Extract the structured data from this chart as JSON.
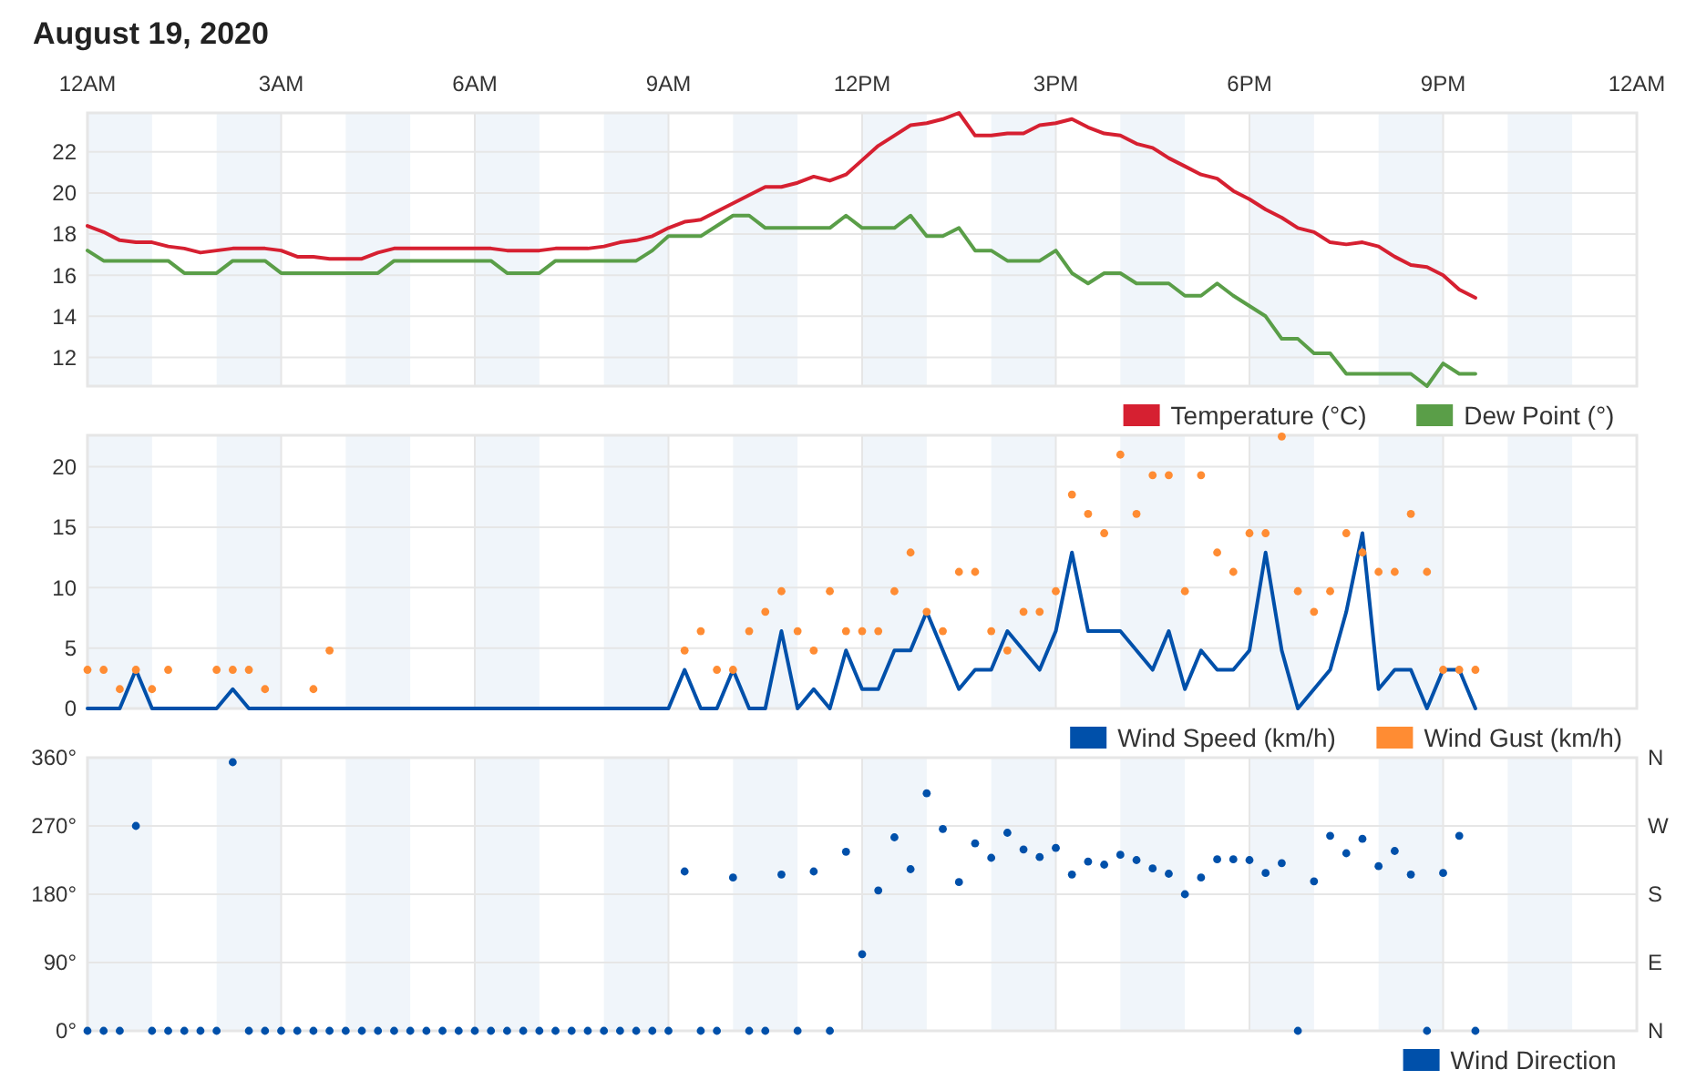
{
  "chart_data": [
    {
      "type": "line",
      "title": "August 19, 2020",
      "xlim": [
        "2020-08-19T00:00",
        "2020-08-20T00:00"
      ],
      "ylim": [
        10.6,
        23.9
      ],
      "x": [
        "2020-08-19T00:00",
        "2020-08-19T00:15",
        "2020-08-19T00:30",
        "2020-08-19T00:45",
        "2020-08-19T01:00",
        "2020-08-19T01:15",
        "2020-08-19T01:30",
        "2020-08-19T01:45",
        "2020-08-19T02:00",
        "2020-08-19T02:15",
        "2020-08-19T02:30",
        "2020-08-19T02:45",
        "2020-08-19T03:00",
        "2020-08-19T03:15",
        "2020-08-19T03:30",
        "2020-08-19T03:45",
        "2020-08-19T04:00",
        "2020-08-19T04:15",
        "2020-08-19T04:30",
        "2020-08-19T04:45",
        "2020-08-19T05:00",
        "2020-08-19T05:15",
        "2020-08-19T05:30",
        "2020-08-19T05:45",
        "2020-08-19T06:00",
        "2020-08-19T06:15",
        "2020-08-19T06:30",
        "2020-08-19T06:45",
        "2020-08-19T07:00",
        "2020-08-19T07:15",
        "2020-08-19T07:30",
        "2020-08-19T07:45",
        "2020-08-19T08:00",
        "2020-08-19T08:15",
        "2020-08-19T08:30",
        "2020-08-19T08:45",
        "2020-08-19T09:00",
        "2020-08-19T09:15",
        "2020-08-19T09:30",
        "2020-08-19T09:45",
        "2020-08-19T10:00",
        "2020-08-19T10:15",
        "2020-08-19T10:30",
        "2020-08-19T10:45",
        "2020-08-19T11:00",
        "2020-08-19T11:15",
        "2020-08-19T11:30",
        "2020-08-19T11:45",
        "2020-08-19T12:00",
        "2020-08-19T12:15",
        "2020-08-19T12:30",
        "2020-08-19T12:45",
        "2020-08-19T13:00",
        "2020-08-19T13:15",
        "2020-08-19T13:30",
        "2020-08-19T13:45",
        "2020-08-19T14:00",
        "2020-08-19T14:15",
        "2020-08-19T14:30",
        "2020-08-19T14:45",
        "2020-08-19T15:00",
        "2020-08-19T15:15",
        "2020-08-19T15:30",
        "2020-08-19T15:45",
        "2020-08-19T16:00",
        "2020-08-19T16:15",
        "2020-08-19T16:30",
        "2020-08-19T16:45",
        "2020-08-19T17:00",
        "2020-08-19T17:15",
        "2020-08-19T17:30",
        "2020-08-19T17:45",
        "2020-08-19T18:00",
        "2020-08-19T18:15",
        "2020-08-19T18:30",
        "2020-08-19T18:45",
        "2020-08-19T19:00",
        "2020-08-19T19:15",
        "2020-08-19T19:30",
        "2020-08-19T19:45",
        "2020-08-19T20:00",
        "2020-08-19T20:15",
        "2020-08-19T20:30",
        "2020-08-19T20:45",
        "2020-08-19T21:00",
        "2020-08-19T21:15",
        "2020-08-19T21:30"
      ],
      "xticks": [
        {
          "value": "2020-08-19T00:00",
          "label": "12AM"
        },
        {
          "value": "2020-08-19T03:00",
          "label": "3AM"
        },
        {
          "value": "2020-08-19T06:00",
          "label": "6AM"
        },
        {
          "value": "2020-08-19T09:00",
          "label": "9AM"
        },
        {
          "value": "2020-08-19T12:00",
          "label": "12PM"
        },
        {
          "value": "2020-08-19T15:00",
          "label": "3PM"
        },
        {
          "value": "2020-08-19T18:00",
          "label": "6PM"
        },
        {
          "value": "2020-08-19T21:00",
          "label": "9PM"
        },
        {
          "value": "2020-08-20T00:00",
          "label": "12AM"
        }
      ],
      "yticks": [
        12,
        14,
        16,
        18,
        20,
        22
      ],
      "grid": true,
      "legend": "bottom right",
      "bands": [
        {
          "axis": "x",
          "from": "2020-08-19T00:00",
          "to": "2020-08-19T01:00",
          "color": "#f0f5fa"
        },
        {
          "axis": "x",
          "from": "2020-08-19T02:00",
          "to": "2020-08-19T03:00",
          "color": "#f0f5fa"
        },
        {
          "axis": "x",
          "from": "2020-08-19T04:00",
          "to": "2020-08-19T05:00",
          "color": "#f0f5fa"
        },
        {
          "axis": "x",
          "from": "2020-08-19T06:00",
          "to": "2020-08-19T07:00",
          "color": "#f0f5fa"
        },
        {
          "axis": "x",
          "from": "2020-08-19T08:00",
          "to": "2020-08-19T09:00",
          "color": "#f0f5fa"
        },
        {
          "axis": "x",
          "from": "2020-08-19T10:00",
          "to": "2020-08-19T11:00",
          "color": "#f0f5fa"
        },
        {
          "axis": "x",
          "from": "2020-08-19T12:00",
          "to": "2020-08-19T13:00",
          "color": "#f0f5fa"
        },
        {
          "axis": "x",
          "from": "2020-08-19T14:00",
          "to": "2020-08-19T15:00",
          "color": "#f0f5fa"
        },
        {
          "axis": "x",
          "from": "2020-08-19T16:00",
          "to": "2020-08-19T17:00",
          "color": "#f0f5fa"
        },
        {
          "axis": "x",
          "from": "2020-08-19T18:00",
          "to": "2020-08-19T19:00",
          "color": "#f0f5fa"
        },
        {
          "axis": "x",
          "from": "2020-08-19T20:00",
          "to": "2020-08-19T21:00",
          "color": "#f0f5fa"
        },
        {
          "axis": "x",
          "from": "2020-08-19T22:00",
          "to": "2020-08-19T23:00",
          "color": "#f0f5fa"
        }
      ],
      "series": [
        {
          "name": "Temperature (°C)",
          "color": "#d62031",
          "values": [
            18.4,
            18.1,
            17.7,
            17.6,
            17.6,
            17.4,
            17.3,
            17.1,
            17.2,
            17.3,
            17.3,
            17.3,
            17.2,
            16.9,
            16.9,
            16.8,
            16.8,
            16.8,
            17.1,
            17.3,
            17.3,
            17.3,
            17.3,
            17.3,
            17.3,
            17.3,
            17.2,
            17.2,
            17.2,
            17.3,
            17.3,
            17.3,
            17.4,
            17.6,
            17.7,
            17.9,
            18.3,
            18.6,
            18.7,
            19.1,
            19.5,
            19.9,
            20.3,
            20.3,
            20.5,
            20.8,
            20.6,
            20.9,
            21.6,
            22.3,
            22.8,
            23.3,
            23.4,
            23.6,
            23.9,
            22.8,
            22.8,
            22.9,
            22.9,
            23.3,
            23.4,
            23.6,
            23.2,
            22.9,
            22.8,
            22.4,
            22.2,
            21.7,
            21.3,
            20.9,
            20.7,
            20.1,
            19.7,
            19.2,
            18.8,
            18.3,
            18.1,
            17.6,
            17.5,
            17.6,
            17.4,
            16.9,
            16.5,
            16.4,
            16.0,
            15.3,
            14.9
          ]
        },
        {
          "name": "Dew Point (°)",
          "color": "#5a9e48",
          "values": [
            17.2,
            16.7,
            16.7,
            16.7,
            16.7,
            16.7,
            16.1,
            16.1,
            16.1,
            16.7,
            16.7,
            16.7,
            16.1,
            16.1,
            16.1,
            16.1,
            16.1,
            16.1,
            16.1,
            16.7,
            16.7,
            16.7,
            16.7,
            16.7,
            16.7,
            16.7,
            16.1,
            16.1,
            16.1,
            16.7,
            16.7,
            16.7,
            16.7,
            16.7,
            16.7,
            17.2,
            17.9,
            17.9,
            17.9,
            18.4,
            18.9,
            18.9,
            18.3,
            18.3,
            18.3,
            18.3,
            18.3,
            18.9,
            18.3,
            18.3,
            18.3,
            18.9,
            17.9,
            17.9,
            18.3,
            17.2,
            17.2,
            16.7,
            16.7,
            16.7,
            17.2,
            16.1,
            15.6,
            16.1,
            16.1,
            15.6,
            15.6,
            15.6,
            15.0,
            15.0,
            15.6,
            15.0,
            14.5,
            14.0,
            12.9,
            12.9,
            12.2,
            12.2,
            11.2,
            11.2,
            11.2,
            11.2,
            11.2,
            10.6,
            11.7,
            11.2,
            11.2
          ]
        }
      ]
    },
    {
      "type": "line",
      "xlim": [
        "2020-08-19T00:00",
        "2020-08-20T00:00"
      ],
      "ylim": [
        0,
        22.6
      ],
      "tick_labels": "y",
      "x": [
        "2020-08-19T00:00",
        "2020-08-19T00:15",
        "2020-08-19T00:30",
        "2020-08-19T00:45",
        "2020-08-19T01:00",
        "2020-08-19T01:15",
        "2020-08-19T01:30",
        "2020-08-19T01:45",
        "2020-08-19T02:00",
        "2020-08-19T02:15",
        "2020-08-19T02:30",
        "2020-08-19T02:45",
        "2020-08-19T03:00",
        "2020-08-19T03:15",
        "2020-08-19T03:30",
        "2020-08-19T03:45",
        "2020-08-19T04:00",
        "2020-08-19T04:15",
        "2020-08-19T04:30",
        "2020-08-19T04:45",
        "2020-08-19T05:00",
        "2020-08-19T05:15",
        "2020-08-19T05:30",
        "2020-08-19T05:45",
        "2020-08-19T06:00",
        "2020-08-19T06:15",
        "2020-08-19T06:30",
        "2020-08-19T06:45",
        "2020-08-19T07:00",
        "2020-08-19T07:15",
        "2020-08-19T07:30",
        "2020-08-19T07:45",
        "2020-08-19T08:00",
        "2020-08-19T08:15",
        "2020-08-19T08:30",
        "2020-08-19T08:45",
        "2020-08-19T09:00",
        "2020-08-19T09:15",
        "2020-08-19T09:30",
        "2020-08-19T09:45",
        "2020-08-19T10:00",
        "2020-08-19T10:15",
        "2020-08-19T10:30",
        "2020-08-19T10:45",
        "2020-08-19T11:00",
        "2020-08-19T11:15",
        "2020-08-19T11:30",
        "2020-08-19T11:45",
        "2020-08-19T12:00",
        "2020-08-19T12:15",
        "2020-08-19T12:30",
        "2020-08-19T12:45",
        "2020-08-19T13:00",
        "2020-08-19T13:15",
        "2020-08-19T13:30",
        "2020-08-19T13:45",
        "2020-08-19T14:00",
        "2020-08-19T14:15",
        "2020-08-19T14:30",
        "2020-08-19T14:45",
        "2020-08-19T15:00",
        "2020-08-19T15:15",
        "2020-08-19T15:30",
        "2020-08-19T15:45",
        "2020-08-19T16:00",
        "2020-08-19T16:15",
        "2020-08-19T16:30",
        "2020-08-19T16:45",
        "2020-08-19T17:00",
        "2020-08-19T17:15",
        "2020-08-19T17:30",
        "2020-08-19T17:45",
        "2020-08-19T18:00",
        "2020-08-19T18:15",
        "2020-08-19T18:30",
        "2020-08-19T18:45",
        "2020-08-19T19:00",
        "2020-08-19T19:15",
        "2020-08-19T19:30",
        "2020-08-19T19:45",
        "2020-08-19T20:00",
        "2020-08-19T20:15",
        "2020-08-19T20:30",
        "2020-08-19T20:45",
        "2020-08-19T21:00",
        "2020-08-19T21:15",
        "2020-08-19T21:30"
      ],
      "xticks": [
        {
          "value": "2020-08-19T00:00",
          "label": null
        },
        {
          "value": "2020-08-19T03:00",
          "label": null
        },
        {
          "value": "2020-08-19T06:00",
          "label": null
        },
        {
          "value": "2020-08-19T09:00",
          "label": null
        },
        {
          "value": "2020-08-19T12:00",
          "label": null
        },
        {
          "value": "2020-08-19T15:00",
          "label": null
        },
        {
          "value": "2020-08-19T18:00",
          "label": null
        },
        {
          "value": "2020-08-19T21:00",
          "label": null
        },
        {
          "value": "2020-08-20T00:00",
          "label": null
        }
      ],
      "yticks": [
        0,
        5,
        10,
        15,
        20
      ],
      "grid": true,
      "legend": "bottom right",
      "bands": [
        {
          "axis": "x",
          "from": "2020-08-19T00:00",
          "to": "2020-08-19T01:00",
          "color": "#f0f5fa"
        },
        {
          "axis": "x",
          "from": "2020-08-19T02:00",
          "to": "2020-08-19T03:00",
          "color": "#f0f5fa"
        },
        {
          "axis": "x",
          "from": "2020-08-19T04:00",
          "to": "2020-08-19T05:00",
          "color": "#f0f5fa"
        },
        {
          "axis": "x",
          "from": "2020-08-19T06:00",
          "to": "2020-08-19T07:00",
          "color": "#f0f5fa"
        },
        {
          "axis": "x",
          "from": "2020-08-19T08:00",
          "to": "2020-08-19T09:00",
          "color": "#f0f5fa"
        },
        {
          "axis": "x",
          "from": "2020-08-19T10:00",
          "to": "2020-08-19T11:00",
          "color": "#f0f5fa"
        },
        {
          "axis": "x",
          "from": "2020-08-19T12:00",
          "to": "2020-08-19T13:00",
          "color": "#f0f5fa"
        },
        {
          "axis": "x",
          "from": "2020-08-19T14:00",
          "to": "2020-08-19T15:00",
          "color": "#f0f5fa"
        },
        {
          "axis": "x",
          "from": "2020-08-19T16:00",
          "to": "2020-08-19T17:00",
          "color": "#f0f5fa"
        },
        {
          "axis": "x",
          "from": "2020-08-19T18:00",
          "to": "2020-08-19T19:00",
          "color": "#f0f5fa"
        },
        {
          "axis": "x",
          "from": "2020-08-19T20:00",
          "to": "2020-08-19T21:00",
          "color": "#f0f5fa"
        },
        {
          "axis": "x",
          "from": "2020-08-19T22:00",
          "to": "2020-08-19T23:00",
          "color": "#f0f5fa"
        }
      ],
      "series": [
        {
          "name": "Wind Speed (km/h)",
          "color": "#0050aa",
          "values": [
            0,
            0,
            0,
            3.2,
            0,
            0,
            0,
            0,
            0,
            1.6,
            0,
            0,
            0,
            0,
            0,
            0,
            0,
            0,
            0,
            0,
            0,
            0,
            0,
            0,
            0,
            0,
            0,
            0,
            0,
            0,
            0,
            0,
            0,
            0,
            0,
            0,
            0,
            3.2,
            0,
            0,
            3.2,
            0,
            0,
            6.4,
            0,
            1.6,
            0,
            4.8,
            1.6,
            1.6,
            4.8,
            4.8,
            8.0,
            4.8,
            1.6,
            3.2,
            3.2,
            6.4,
            4.8,
            3.2,
            6.4,
            12.9,
            6.4,
            6.4,
            6.4,
            4.8,
            3.2,
            6.4,
            1.6,
            4.8,
            3.2,
            3.2,
            4.8,
            12.9,
            4.8,
            0,
            1.6,
            3.2,
            8.0,
            14.5,
            1.6,
            3.2,
            3.2,
            0,
            3.2,
            3.2,
            0
          ]
        },
        {
          "name": "Wind Gust (km/h)",
          "type": "scatter",
          "marker": "circle",
          "color": "#ff8c33",
          "values": [
            3.2,
            3.2,
            1.6,
            3.2,
            1.6,
            3.2,
            null,
            null,
            3.2,
            3.2,
            3.2,
            1.6,
            null,
            null,
            1.6,
            4.8,
            null,
            null,
            null,
            null,
            null,
            null,
            null,
            null,
            null,
            null,
            null,
            null,
            null,
            null,
            null,
            null,
            null,
            null,
            null,
            null,
            null,
            4.8,
            6.4,
            3.2,
            3.2,
            6.4,
            8.0,
            9.7,
            6.4,
            4.8,
            9.7,
            6.4,
            6.4,
            6.4,
            9.7,
            12.9,
            8.0,
            6.4,
            11.3,
            11.3,
            6.4,
            4.8,
            8.0,
            8.0,
            9.7,
            17.7,
            16.1,
            14.5,
            21.0,
            16.1,
            19.3,
            19.3,
            9.7,
            19.3,
            12.9,
            11.3,
            14.5,
            14.5,
            22.5,
            9.7,
            8.0,
            9.7,
            14.5,
            12.9,
            11.3,
            11.3,
            16.1,
            11.3,
            3.2,
            3.2,
            3.2
          ]
        }
      ]
    },
    {
      "type": "scatter",
      "xlim": [
        "2020-08-19T00:00",
        "2020-08-20T00:00"
      ],
      "ylim": [
        0,
        360
      ],
      "tick_labels": "y",
      "x": [
        "2020-08-19T00:00",
        "2020-08-19T00:15",
        "2020-08-19T00:30",
        "2020-08-19T00:45",
        "2020-08-19T01:00",
        "2020-08-19T01:15",
        "2020-08-19T01:30",
        "2020-08-19T01:45",
        "2020-08-19T02:00",
        "2020-08-19T02:15",
        "2020-08-19T02:30",
        "2020-08-19T02:45",
        "2020-08-19T03:00",
        "2020-08-19T03:15",
        "2020-08-19T03:30",
        "2020-08-19T03:45",
        "2020-08-19T04:00",
        "2020-08-19T04:15",
        "2020-08-19T04:30",
        "2020-08-19T04:45",
        "2020-08-19T05:00",
        "2020-08-19T05:15",
        "2020-08-19T05:30",
        "2020-08-19T05:45",
        "2020-08-19T06:00",
        "2020-08-19T06:15",
        "2020-08-19T06:30",
        "2020-08-19T06:45",
        "2020-08-19T07:00",
        "2020-08-19T07:15",
        "2020-08-19T07:30",
        "2020-08-19T07:45",
        "2020-08-19T08:00",
        "2020-08-19T08:15",
        "2020-08-19T08:30",
        "2020-08-19T08:45",
        "2020-08-19T09:00",
        "2020-08-19T09:15",
        "2020-08-19T09:30",
        "2020-08-19T09:45",
        "2020-08-19T10:00",
        "2020-08-19T10:15",
        "2020-08-19T10:30",
        "2020-08-19T10:45",
        "2020-08-19T11:00",
        "2020-08-19T11:15",
        "2020-08-19T11:30",
        "2020-08-19T11:45",
        "2020-08-19T12:00",
        "2020-08-19T12:15",
        "2020-08-19T12:30",
        "2020-08-19T12:45",
        "2020-08-19T13:00",
        "2020-08-19T13:15",
        "2020-08-19T13:30",
        "2020-08-19T13:45",
        "2020-08-19T14:00",
        "2020-08-19T14:15",
        "2020-08-19T14:30",
        "2020-08-19T14:45",
        "2020-08-19T15:00",
        "2020-08-19T15:15",
        "2020-08-19T15:30",
        "2020-08-19T15:45",
        "2020-08-19T16:00",
        "2020-08-19T16:15",
        "2020-08-19T16:30",
        "2020-08-19T16:45",
        "2020-08-19T17:00",
        "2020-08-19T17:15",
        "2020-08-19T17:30",
        "2020-08-19T17:45",
        "2020-08-19T18:00",
        "2020-08-19T18:15",
        "2020-08-19T18:30",
        "2020-08-19T18:45",
        "2020-08-19T19:00",
        "2020-08-19T19:15",
        "2020-08-19T19:30",
        "2020-08-19T19:45",
        "2020-08-19T20:00",
        "2020-08-19T20:15",
        "2020-08-19T20:30",
        "2020-08-19T20:45",
        "2020-08-19T21:00",
        "2020-08-19T21:15",
        "2020-08-19T21:30"
      ],
      "xticks": [
        {
          "value": "2020-08-19T00:00",
          "label": null
        },
        {
          "value": "2020-08-19T03:00",
          "label": null
        },
        {
          "value": "2020-08-19T06:00",
          "label": null
        },
        {
          "value": "2020-08-19T09:00",
          "label": null
        },
        {
          "value": "2020-08-19T12:00",
          "label": null
        },
        {
          "value": "2020-08-19T15:00",
          "label": null
        },
        {
          "value": "2020-08-19T18:00",
          "label": null
        },
        {
          "value": "2020-08-19T21:00",
          "label": null
        },
        {
          "value": "2020-08-20T00:00",
          "label": null
        }
      ],
      "yticks": [
        {
          "value": 0,
          "label": "0°"
        },
        {
          "value": 90,
          "label": "90°"
        },
        {
          "value": 180,
          "label": "180°"
        },
        {
          "value": 270,
          "label": "270°"
        },
        {
          "value": 360,
          "label": "360°"
        }
      ],
      "annotations": [
        "N",
        "W",
        "S",
        "E",
        "N"
      ],
      "grid": true,
      "legend": "bottom right",
      "bands": [
        {
          "axis": "x",
          "from": "2020-08-19T00:00",
          "to": "2020-08-19T01:00",
          "color": "#f0f5fa"
        },
        {
          "axis": "x",
          "from": "2020-08-19T02:00",
          "to": "2020-08-19T03:00",
          "color": "#f0f5fa"
        },
        {
          "axis": "x",
          "from": "2020-08-19T04:00",
          "to": "2020-08-19T05:00",
          "color": "#f0f5fa"
        },
        {
          "axis": "x",
          "from": "2020-08-19T06:00",
          "to": "2020-08-19T07:00",
          "color": "#f0f5fa"
        },
        {
          "axis": "x",
          "from": "2020-08-19T08:00",
          "to": "2020-08-19T09:00",
          "color": "#f0f5fa"
        },
        {
          "axis": "x",
          "from": "2020-08-19T10:00",
          "to": "2020-08-19T11:00",
          "color": "#f0f5fa"
        },
        {
          "axis": "x",
          "from": "2020-08-19T12:00",
          "to": "2020-08-19T13:00",
          "color": "#f0f5fa"
        },
        {
          "axis": "x",
          "from": "2020-08-19T14:00",
          "to": "2020-08-19T15:00",
          "color": "#f0f5fa"
        },
        {
          "axis": "x",
          "from": "2020-08-19T16:00",
          "to": "2020-08-19T17:00",
          "color": "#f0f5fa"
        },
        {
          "axis": "x",
          "from": "2020-08-19T18:00",
          "to": "2020-08-19T19:00",
          "color": "#f0f5fa"
        },
        {
          "axis": "x",
          "from": "2020-08-19T20:00",
          "to": "2020-08-19T21:00",
          "color": "#f0f5fa"
        },
        {
          "axis": "x",
          "from": "2020-08-19T22:00",
          "to": "2020-08-19T23:00",
          "color": "#f0f5fa"
        }
      ],
      "series": [
        {
          "name": "Wind Direction",
          "marker": "circle",
          "color": "#0050aa",
          "values": [
            0,
            0,
            0,
            270,
            0,
            0,
            0,
            0,
            0,
            354,
            0,
            0,
            0,
            0,
            0,
            0,
            0,
            0,
            0,
            0,
            0,
            0,
            0,
            0,
            0,
            0,
            0,
            0,
            0,
            0,
            0,
            0,
            0,
            0,
            0,
            0,
            0,
            210,
            0,
            0,
            202,
            0,
            0,
            206,
            0,
            210,
            0,
            236,
            101,
            185,
            255,
            213,
            313,
            266,
            196,
            247,
            228,
            261,
            239,
            229,
            241,
            206,
            223,
            219,
            232,
            225,
            214,
            207,
            180,
            202,
            226,
            226,
            225,
            208,
            221,
            0,
            197,
            257,
            234,
            253,
            217,
            237,
            206,
            0,
            208,
            257,
            0
          ]
        }
      ]
    }
  ]
}
